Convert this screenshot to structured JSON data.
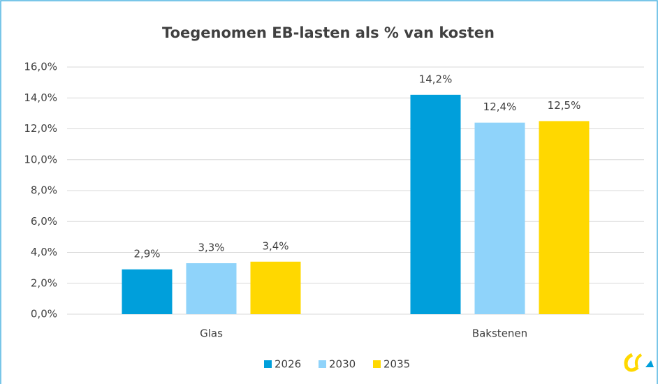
{
  "chart_data": {
    "type": "bar",
    "title": "Toegenomen EB-lasten als % van kosten",
    "categories": [
      "Glas",
      "Bakstenen"
    ],
    "series": [
      {
        "name": "2026",
        "color": "#009fdb",
        "values": [
          2.9,
          14.2
        ],
        "value_labels": [
          "2,9%",
          "14,2%"
        ]
      },
      {
        "name": "2030",
        "color": "#8fd3fa",
        "values": [
          3.3,
          12.4
        ],
        "value_labels": [
          "3,3%",
          "12,4%"
        ]
      },
      {
        "name": "2035",
        "color": "#ffd800",
        "values": [
          3.4,
          12.5
        ],
        "value_labels": [
          "3,4%",
          "12,5%"
        ]
      }
    ],
    "ylim": [
      0,
      16
    ],
    "yticks": [
      {
        "value": 0,
        "label": "0,0%"
      },
      {
        "value": 2,
        "label": "2,0%"
      },
      {
        "value": 4,
        "label": "4,0%"
      },
      {
        "value": 6,
        "label": "6,0%"
      },
      {
        "value": 8,
        "label": "8,0%"
      },
      {
        "value": 10,
        "label": "10,0%"
      },
      {
        "value": 12,
        "label": "12,0%"
      },
      {
        "value": 14,
        "label": "14,0%"
      },
      {
        "value": 16,
        "label": "16,0%"
      }
    ],
    "grid": true,
    "legend": "bottom"
  }
}
